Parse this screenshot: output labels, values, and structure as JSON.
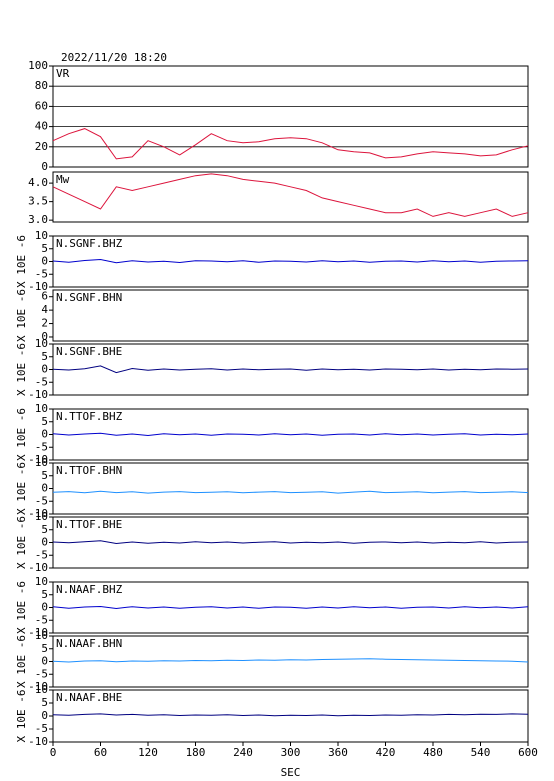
{
  "chart_data": [
    {
      "type": "line",
      "title": "2022/11/20 18:20",
      "xlim": [
        0,
        600
      ],
      "ylim": [
        0,
        100
      ],
      "yticks": [
        0,
        20,
        40,
        60,
        80,
        100
      ],
      "grid": true,
      "x": [
        0,
        20,
        40,
        60,
        80,
        100,
        120,
        140,
        160,
        180,
        200,
        220,
        240,
        260,
        280,
        300,
        320,
        340,
        360,
        380,
        400,
        420,
        440,
        460,
        480,
        500,
        520,
        540,
        560,
        580,
        600
      ],
      "series": [
        {
          "name": "VR",
          "color": "#dc143c",
          "values": [
            26,
            33,
            38,
            30,
            8,
            10,
            26,
            20,
            12,
            22,
            33,
            26,
            24,
            25,
            28,
            29,
            28,
            24,
            17,
            15,
            14,
            9,
            10,
            13,
            15,
            14,
            13,
            11,
            12,
            17,
            21
          ]
        }
      ]
    },
    {
      "type": "line",
      "xlim": [
        0,
        600
      ],
      "ylim": [
        2.95,
        4.3
      ],
      "yticks": [
        {
          "value": 3,
          "label": "3.0"
        },
        {
          "value": 3.5,
          "label": "3.5"
        },
        {
          "value": 4,
          "label": "4.0"
        }
      ],
      "grid": false,
      "x": [
        0,
        20,
        40,
        60,
        80,
        100,
        120,
        140,
        160,
        180,
        200,
        220,
        240,
        260,
        280,
        300,
        320,
        340,
        360,
        380,
        400,
        420,
        440,
        460,
        480,
        500,
        520,
        540,
        560,
        580,
        600
      ],
      "series": [
        {
          "name": "Mw",
          "color": "#dc143c",
          "values": [
            3.9,
            3.7,
            3.5,
            3.3,
            3.9,
            3.8,
            3.9,
            4.0,
            4.1,
            4.2,
            4.25,
            4.2,
            4.1,
            4.05,
            4.0,
            3.9,
            3.8,
            3.6,
            3.5,
            3.4,
            3.3,
            3.2,
            3.2,
            3.3,
            3.1,
            3.2,
            3.1,
            3.2,
            3.3,
            3.1,
            3.2
          ]
        }
      ]
    },
    {
      "type": "line",
      "ylabel": "X 10E -6",
      "xlim": [
        0,
        600
      ],
      "ylim": [
        -10,
        10
      ],
      "yticks": [
        -10,
        -5,
        0,
        5,
        10
      ],
      "grid": false,
      "x": [
        0,
        20,
        40,
        60,
        80,
        100,
        120,
        140,
        160,
        180,
        200,
        220,
        240,
        260,
        280,
        300,
        320,
        340,
        360,
        380,
        400,
        420,
        440,
        460,
        480,
        500,
        520,
        540,
        560,
        580,
        600
      ],
      "series": [
        {
          "name": "N.SGNF.BHZ",
          "color": "#0000cd",
          "values": [
            0.2,
            -0.3,
            0.4,
            0.8,
            -0.5,
            0.3,
            -0.2,
            0.1,
            -0.4,
            0.3,
            0.2,
            -0.1,
            0.3,
            -0.3,
            0.2,
            0.1,
            -0.2,
            0.3,
            -0.1,
            0.2,
            -0.3,
            0.1,
            0.2,
            -0.2,
            0.3,
            -0.1,
            0.2,
            -0.3,
            0.1,
            0.2,
            0.3
          ]
        }
      ]
    },
    {
      "type": "line",
      "ylabel": "X 10E -6",
      "xlim": [
        0,
        600
      ],
      "ylim": [
        -0.6,
        7
      ],
      "yticks": [
        0,
        2,
        4,
        6
      ],
      "grid": false,
      "x": [],
      "series": [
        {
          "name": "N.SGNF.BHN",
          "color": "#1e90ff",
          "values": []
        }
      ]
    },
    {
      "type": "line",
      "ylabel": "X 10E -6",
      "xlim": [
        0,
        600
      ],
      "ylim": [
        -10,
        10
      ],
      "yticks": [
        -10,
        -5,
        0,
        5,
        10
      ],
      "grid": false,
      "x": [
        0,
        20,
        40,
        60,
        80,
        100,
        120,
        140,
        160,
        180,
        200,
        220,
        240,
        260,
        280,
        300,
        320,
        340,
        360,
        380,
        400,
        420,
        440,
        460,
        480,
        500,
        520,
        540,
        560,
        580,
        600
      ],
      "series": [
        {
          "name": "N.SGNF.BHE",
          "color": "#000080",
          "values": [
            0.1,
            -0.2,
            0.3,
            1.4,
            -1.2,
            0.4,
            -0.3,
            0.2,
            -0.2,
            0.1,
            0.3,
            -0.2,
            0.2,
            -0.1,
            0.1,
            0.2,
            -0.3,
            0.2,
            -0.1,
            0.1,
            -0.2,
            0.2,
            0.1,
            -0.1,
            0.2,
            -0.2,
            0.1,
            -0.1,
            0.2,
            0.1,
            0.2
          ]
        }
      ]
    },
    {
      "type": "line",
      "ylabel": "X 10E -6",
      "xlim": [
        0,
        600
      ],
      "ylim": [
        -10,
        10
      ],
      "yticks": [
        -10,
        -5,
        0,
        5,
        10
      ],
      "grid": false,
      "x": [
        0,
        20,
        40,
        60,
        80,
        100,
        120,
        140,
        160,
        180,
        200,
        220,
        240,
        260,
        280,
        300,
        320,
        340,
        360,
        380,
        400,
        420,
        440,
        460,
        480,
        500,
        520,
        540,
        560,
        580,
        600
      ],
      "series": [
        {
          "name": "N.TTOF.BHZ",
          "color": "#0000cd",
          "values": [
            0.3,
            -0.2,
            0.2,
            0.5,
            -0.3,
            0.2,
            -0.4,
            0.3,
            -0.1,
            0.2,
            -0.3,
            0.2,
            0.1,
            -0.2,
            0.3,
            -0.1,
            0.2,
            -0.3,
            0.1,
            0.2,
            -0.2,
            0.3,
            -0.1,
            0.2,
            -0.2,
            0.1,
            0.3,
            -0.2,
            0.1,
            -0.1,
            0.2
          ]
        }
      ]
    },
    {
      "type": "line",
      "ylabel": "X 10E -6",
      "xlim": [
        0,
        600
      ],
      "ylim": [
        -10,
        10
      ],
      "yticks": [
        -10,
        -5,
        0,
        5,
        10
      ],
      "grid": false,
      "x": [
        0,
        20,
        40,
        60,
        80,
        100,
        120,
        140,
        160,
        180,
        200,
        220,
        240,
        260,
        280,
        300,
        320,
        340,
        360,
        380,
        400,
        420,
        440,
        460,
        480,
        500,
        520,
        540,
        560,
        580,
        600
      ],
      "series": [
        {
          "name": "N.TTOF.BHN",
          "color": "#1e90ff",
          "values": [
            -1.5,
            -1.2,
            -1.7,
            -1.1,
            -1.6,
            -1.3,
            -1.8,
            -1.4,
            -1.2,
            -1.6,
            -1.5,
            -1.3,
            -1.7,
            -1.4,
            -1.2,
            -1.6,
            -1.5,
            -1.3,
            -1.8,
            -1.4,
            -1.1,
            -1.6,
            -1.5,
            -1.3,
            -1.7,
            -1.4,
            -1.2,
            -1.6,
            -1.5,
            -1.3,
            -1.6
          ]
        }
      ]
    },
    {
      "type": "line",
      "ylabel": "X 10E -6",
      "xlim": [
        0,
        600
      ],
      "ylim": [
        -10,
        10
      ],
      "yticks": [
        -10,
        -5,
        0,
        5,
        10
      ],
      "grid": false,
      "x": [
        0,
        20,
        40,
        60,
        80,
        100,
        120,
        140,
        160,
        180,
        200,
        220,
        240,
        260,
        280,
        300,
        320,
        340,
        360,
        380,
        400,
        420,
        440,
        460,
        480,
        500,
        520,
        540,
        560,
        580,
        600
      ],
      "series": [
        {
          "name": "N.TTOF.BHE",
          "color": "#000080",
          "values": [
            0.2,
            -0.1,
            0.3,
            0.7,
            -0.4,
            0.2,
            -0.3,
            0.1,
            -0.2,
            0.3,
            -0.1,
            0.2,
            -0.2,
            0.1,
            0.3,
            -0.2,
            0.1,
            -0.1,
            0.2,
            -0.3,
            0.1,
            0.2,
            -0.1,
            0.2,
            -0.2,
            0.1,
            -0.1,
            0.3,
            -0.2,
            0.1,
            0.2
          ]
        }
      ]
    },
    {
      "type": "line",
      "ylabel": "X 10E -6",
      "xlim": [
        0,
        600
      ],
      "ylim": [
        -10,
        10
      ],
      "yticks": [
        -10,
        -5,
        0,
        5,
        10
      ],
      "grid": false,
      "x": [
        0,
        20,
        40,
        60,
        80,
        100,
        120,
        140,
        160,
        180,
        200,
        220,
        240,
        260,
        280,
        300,
        320,
        340,
        360,
        380,
        400,
        420,
        440,
        460,
        480,
        500,
        520,
        540,
        560,
        580,
        600
      ],
      "series": [
        {
          "name": "N.NAAF.BHZ",
          "color": "#0000cd",
          "values": [
            0.3,
            -0.3,
            0.2,
            0.4,
            -0.4,
            0.3,
            -0.2,
            0.2,
            -0.3,
            0.1,
            0.3,
            -0.2,
            0.2,
            -0.3,
            0.2,
            0.1,
            -0.3,
            0.2,
            -0.2,
            0.3,
            -0.1,
            0.2,
            -0.3,
            0.1,
            0.2,
            -0.2,
            0.3,
            -0.1,
            0.2,
            -0.2,
            0.3
          ]
        }
      ]
    },
    {
      "type": "line",
      "ylabel": "X 10E -6",
      "xlim": [
        0,
        600
      ],
      "ylim": [
        -10,
        10
      ],
      "yticks": [
        -10,
        -5,
        0,
        5,
        10
      ],
      "grid": false,
      "x": [
        0,
        20,
        40,
        60,
        80,
        100,
        120,
        140,
        160,
        180,
        200,
        220,
        240,
        260,
        280,
        300,
        320,
        340,
        360,
        380,
        400,
        420,
        440,
        460,
        480,
        500,
        520,
        540,
        560,
        580,
        600
      ],
      "series": [
        {
          "name": "N.NAAF.BHN",
          "color": "#1e90ff",
          "values": [
            0.1,
            -0.2,
            0.2,
            0.3,
            -0.1,
            0.2,
            0.1,
            0.3,
            0.2,
            0.4,
            0.3,
            0.5,
            0.4,
            0.6,
            0.5,
            0.7,
            0.6,
            0.8,
            0.9,
            1.0,
            1.1,
            0.9,
            0.8,
            0.7,
            0.6,
            0.5,
            0.4,
            0.3,
            0.2,
            0.1,
            -0.2
          ]
        }
      ]
    },
    {
      "type": "line",
      "ylabel": "X 10E -6",
      "xlabel": "SEC",
      "xlim": [
        0,
        600
      ],
      "ylim": [
        -10,
        10
      ],
      "yticks": [
        -10,
        -5,
        0,
        5,
        10
      ],
      "xticks": [
        0,
        60,
        120,
        180,
        240,
        300,
        360,
        420,
        480,
        540,
        600
      ],
      "grid": false,
      "x": [
        0,
        20,
        40,
        60,
        80,
        100,
        120,
        140,
        160,
        180,
        200,
        220,
        240,
        260,
        280,
        300,
        320,
        340,
        360,
        380,
        400,
        420,
        440,
        460,
        480,
        500,
        520,
        540,
        560,
        580,
        600
      ],
      "series": [
        {
          "name": "N.NAAF.BHE",
          "color": "#000080",
          "values": [
            0.5,
            0.3,
            0.6,
            0.8,
            0.4,
            0.6,
            0.3,
            0.5,
            0.2,
            0.4,
            0.3,
            0.5,
            0.2,
            0.4,
            0.1,
            0.3,
            0.2,
            0.4,
            0.1,
            0.3,
            0.2,
            0.4,
            0.3,
            0.5,
            0.4,
            0.6,
            0.5,
            0.7,
            0.6,
            0.8,
            0.7
          ]
        }
      ]
    }
  ]
}
